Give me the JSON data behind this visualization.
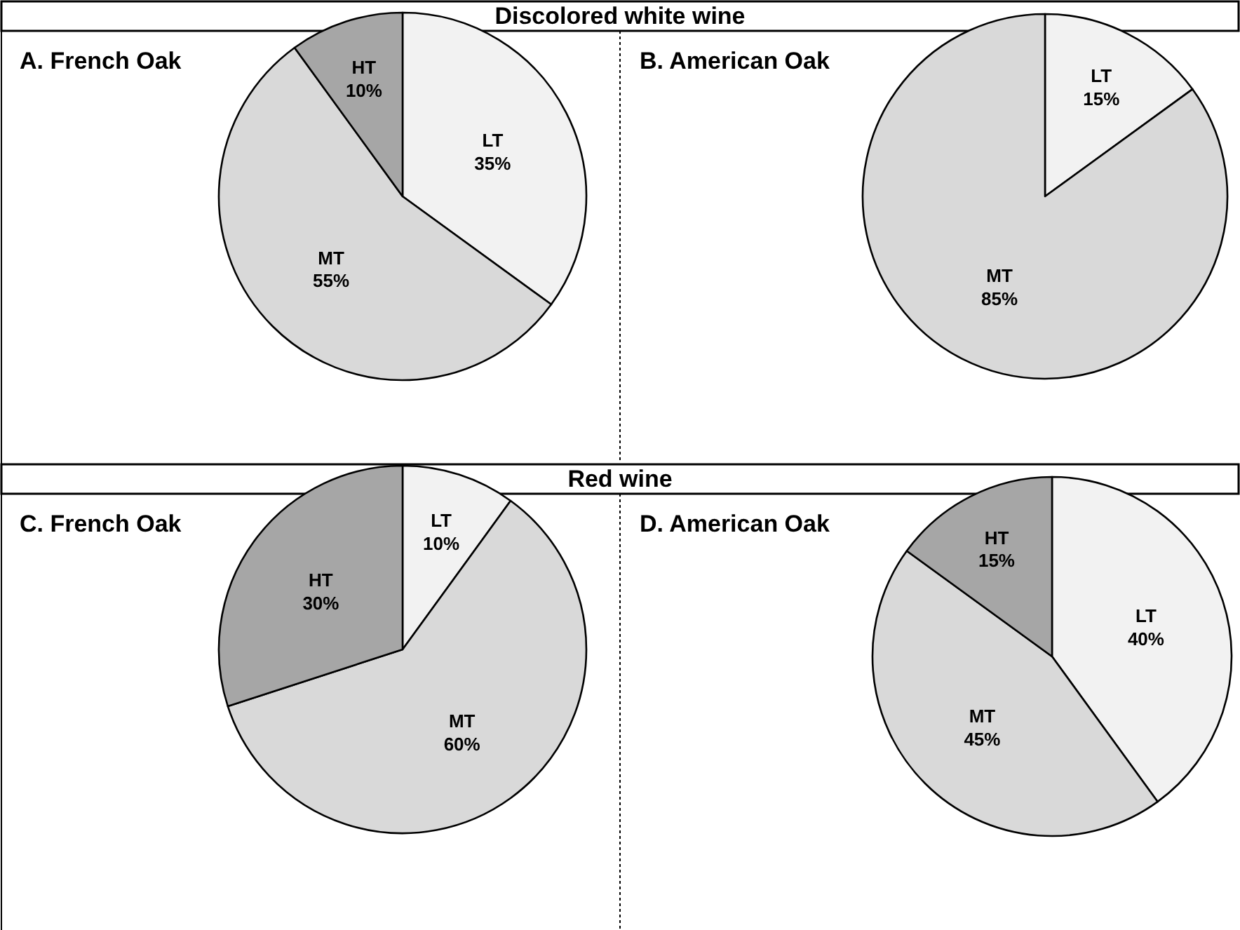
{
  "chart_data": [
    {
      "type": "pie",
      "title": "A. French Oak",
      "subtitle": "Discolored white wine",
      "categories": [
        "LT",
        "MT",
        "HT"
      ],
      "values": [
        35,
        55,
        10
      ],
      "value_labels": [
        "35%",
        "55%",
        "10%"
      ],
      "colors": [
        "#f2f2f2",
        "#d9d9d9",
        "#a6a6a6"
      ]
    },
    {
      "type": "pie",
      "title": "B. American Oak",
      "categories": [
        "LT",
        "MT"
      ],
      "values": [
        15,
        85
      ],
      "value_labels": [
        "15%",
        "85%"
      ],
      "colors": [
        "#f2f2f2",
        "#d9d9d9"
      ]
    },
    {
      "type": "pie",
      "title": "C. French Oak",
      "subtitle": "Red wine",
      "categories": [
        "LT",
        "MT",
        "HT"
      ],
      "values": [
        10,
        60,
        30
      ],
      "value_labels": [
        "10%",
        "60%",
        "30%"
      ],
      "colors": [
        "#f2f2f2",
        "#d9d9d9",
        "#a6a6a6"
      ]
    },
    {
      "type": "pie",
      "title": "D. American Oak",
      "categories": [
        "LT",
        "MT",
        "HT"
      ],
      "values": [
        40,
        45,
        15
      ],
      "value_labels": [
        "40%",
        "45%",
        "15%"
      ],
      "colors": [
        "#f2f2f2",
        "#d9d9d9",
        "#a6a6a6"
      ]
    }
  ]
}
